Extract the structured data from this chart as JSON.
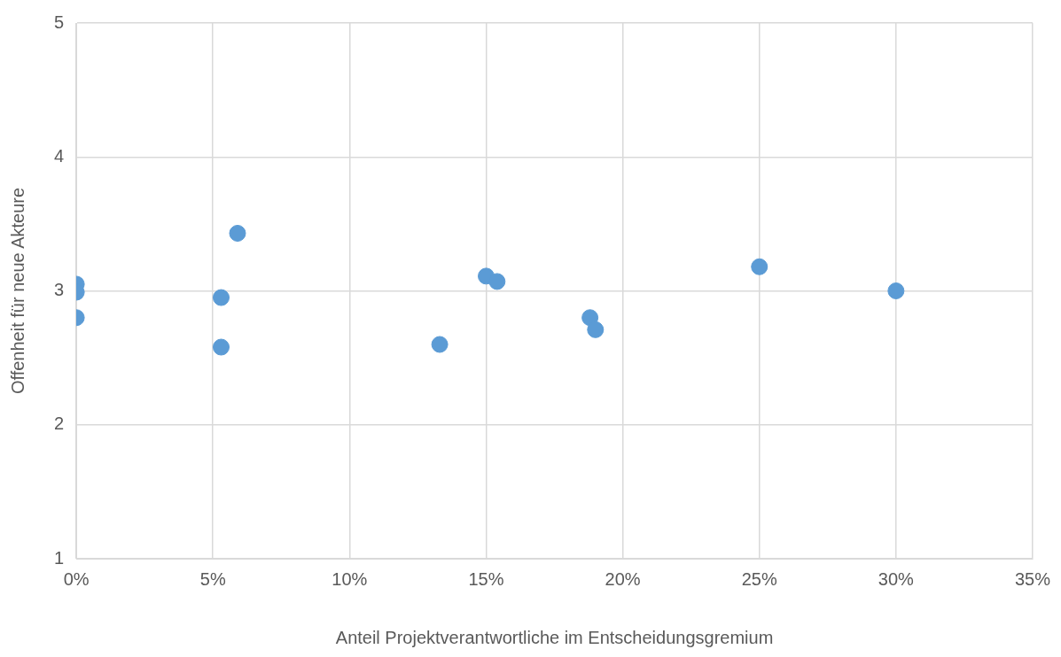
{
  "chart_data": {
    "type": "scatter",
    "xlabel": "Anteil Projektverantwortliche im Entscheidungsgremium",
    "ylabel": "Offenheit für neue Akteure",
    "x": [
      0,
      0,
      0,
      5.3,
      5.3,
      5.9,
      13.3,
      15.0,
      15.4,
      18.8,
      19.0,
      25.0,
      30.0
    ],
    "series": [
      {
        "color": "#5b9bd5",
        "values": [
          3.05,
          2.99,
          2.8,
          2.95,
          2.58,
          3.43,
          2.6,
          3.11,
          3.07,
          2.8,
          2.71,
          3.18,
          3.0
        ]
      }
    ],
    "xlim": [
      0,
      35
    ],
    "xticks": [
      {
        "value": 0,
        "label": "0%"
      },
      {
        "value": 5,
        "label": "5%"
      },
      {
        "value": 10,
        "label": "10%"
      },
      {
        "value": 15,
        "label": "15%"
      },
      {
        "value": 20,
        "label": "20%"
      },
      {
        "value": 25,
        "label": "25%"
      },
      {
        "value": 30,
        "label": "30%"
      },
      {
        "value": 35,
        "label": "35%"
      }
    ],
    "ylim": [
      1,
      5
    ],
    "yticks": [
      1,
      2,
      3,
      4,
      5
    ],
    "grid": true,
    "marker": "circle",
    "legend": false
  }
}
